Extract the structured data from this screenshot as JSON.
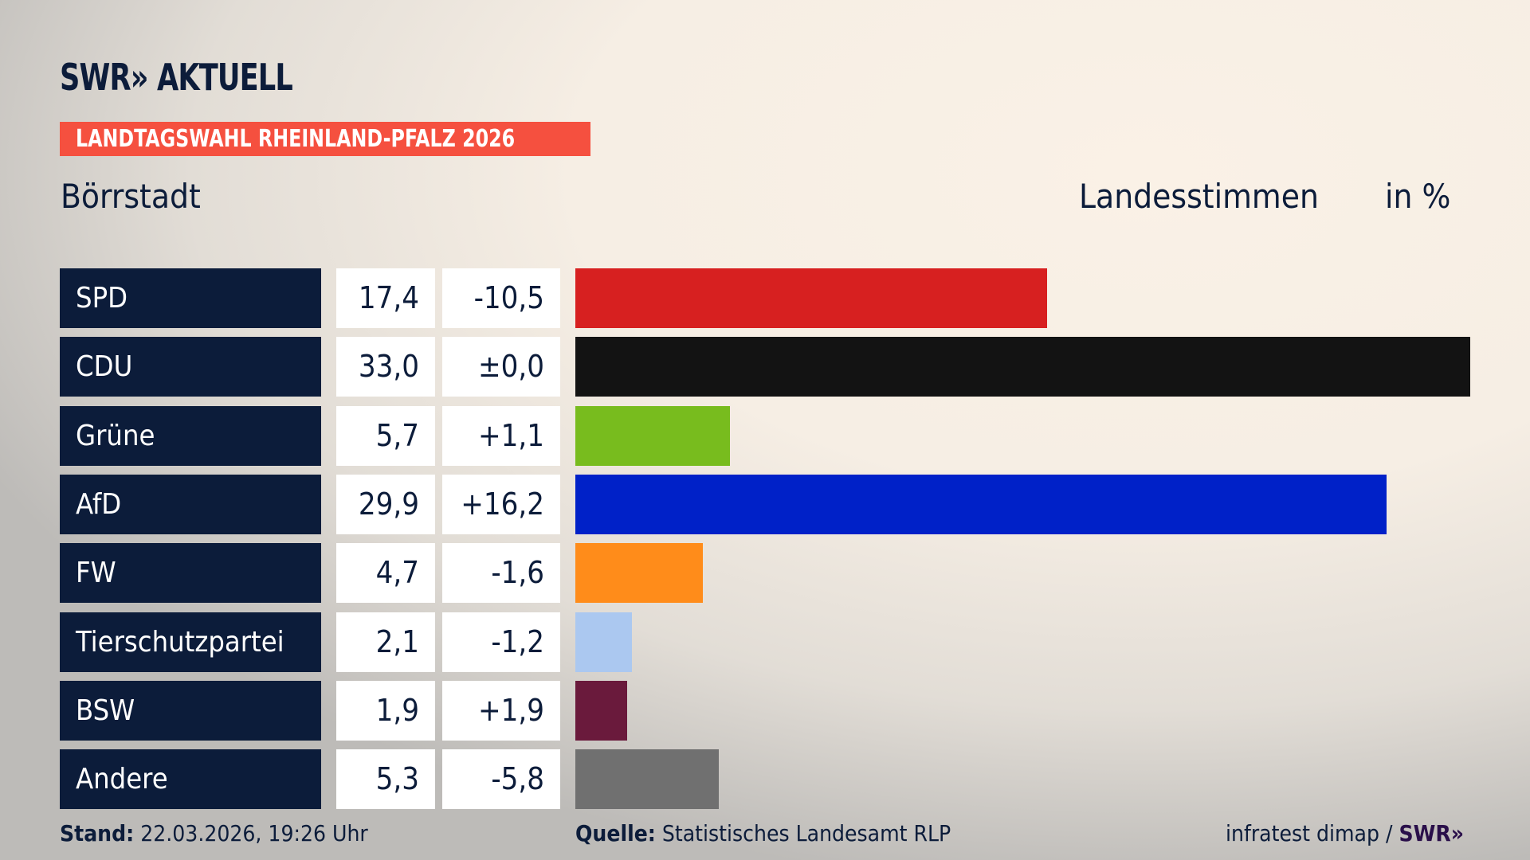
{
  "header": {
    "logo": "SWR» AKTUELL",
    "banner": "LANDTAGSWAHL RHEINLAND-PFALZ 2026",
    "banner_color": "#f5503f",
    "location": "Börrstadt",
    "measure": "Landesstimmen",
    "unit": "in %"
  },
  "chart_data": {
    "type": "bar",
    "orientation": "horizontal",
    "xlim": [
      0,
      33.0
    ],
    "categories": [
      "SPD",
      "CDU",
      "Grüne",
      "AfD",
      "FW",
      "Tierschutzpartei",
      "BSW",
      "Andere"
    ],
    "values": [
      17.4,
      33.0,
      5.7,
      29.9,
      4.7,
      2.1,
      1.9,
      5.3
    ],
    "value_labels": [
      "17,4",
      "33,0",
      "5,7",
      "29,9",
      "4,7",
      "2,1",
      "1,9",
      "5,3"
    ],
    "diff_labels": [
      "-10,5",
      "±0,0",
      "+1,1",
      "+16,2",
      "-1,6",
      "-1,2",
      "+1,9",
      "-5,8"
    ],
    "colors": [
      "#d72020",
      "#131313",
      "#78bc1e",
      "#0021c8",
      "#ff8c1a",
      "#abc8f0",
      "#6a1a3c",
      "#707070"
    ]
  },
  "footer": {
    "stand_label": "Stand:",
    "stand_value": "22.03.2026, 19:26 Uhr",
    "source_label": "Quelle:",
    "source_value": "Statistisches Landesamt RLP",
    "credit": "infratest dimap /",
    "credit_logo": "SWR»"
  }
}
